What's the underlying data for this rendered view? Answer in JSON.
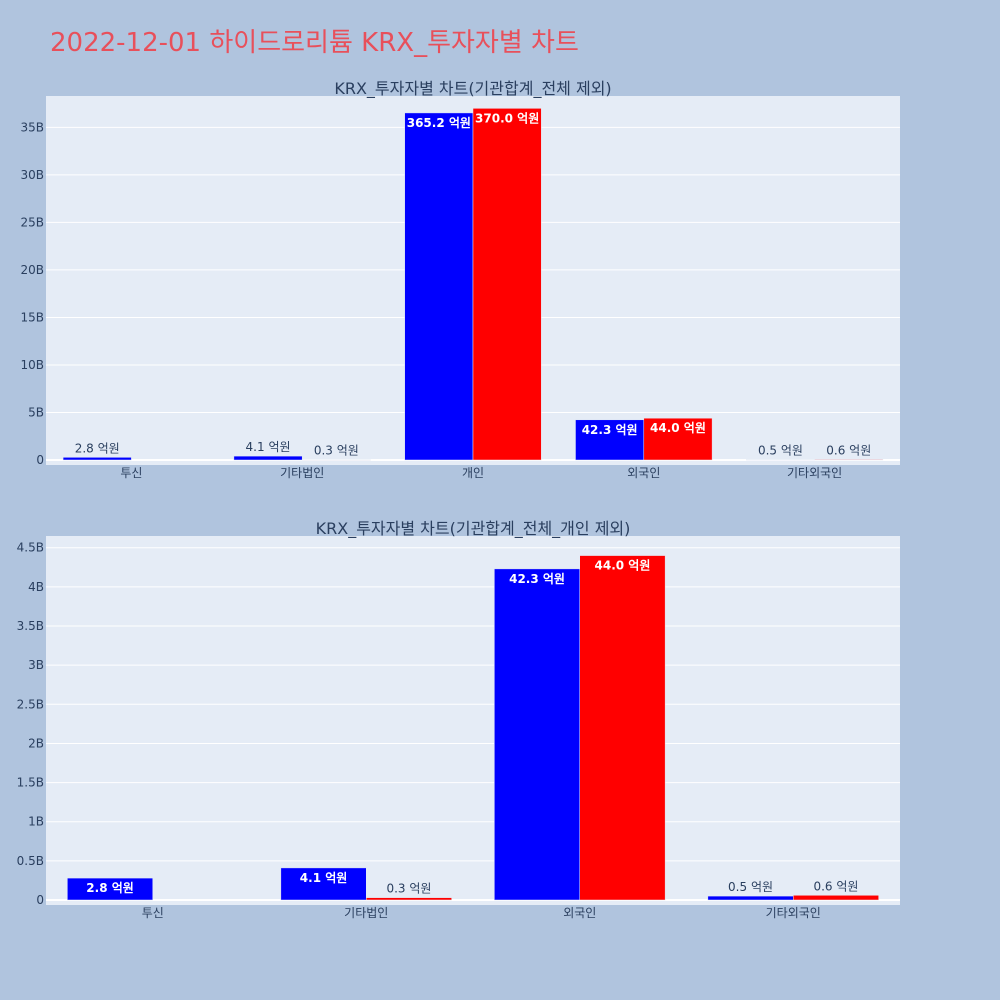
{
  "page": {
    "title": "2022-12-01 하이드로리튬 KRX_투자자별 차트"
  },
  "colors": {
    "background": "#b0c4de",
    "plot_bg": "#e5ecf6",
    "title": "#e8505b",
    "buy": "#0000ff",
    "sell": "#ff0000",
    "text": "#2a3f5f"
  },
  "chart_data": [
    {
      "type": "bar",
      "title": "KRX_투자자별 차트(기관합계_전체 제외)",
      "categories": [
        "투신",
        "기타법인",
        "개인",
        "외국인",
        "기타외국인"
      ],
      "series": [
        {
          "color": "#0000ff",
          "values": [
            280000000,
            410000000,
            36520000000,
            4230000000,
            50000000
          ],
          "labels": [
            "2.8 억원",
            "4.1 억원",
            "365.2 억원",
            "42.3 억원",
            "0.5 억원"
          ]
        },
        {
          "color": "#ff0000",
          "values": [
            0,
            30000000,
            37000000000,
            4400000000,
            60000000
          ],
          "labels": [
            "",
            "0.3 억원",
            "370.0 억원",
            "44.0 억원",
            "0.6 억원"
          ]
        }
      ],
      "ylim": [
        0,
        38300000000
      ],
      "yticks": [
        0,
        5000000000,
        10000000000,
        15000000000,
        20000000000,
        25000000000,
        30000000000,
        35000000000
      ],
      "yticklabels": [
        "0",
        "5B",
        "10B",
        "15B",
        "20B",
        "25B",
        "30B",
        "35B"
      ],
      "grid": true
    },
    {
      "type": "bar",
      "title": "KRX_투자자별 차트(기관합계_전체_개인 제외)",
      "categories": [
        "투신",
        "기타법인",
        "외국인",
        "기타외국인"
      ],
      "series": [
        {
          "color": "#0000ff",
          "values": [
            280000000,
            410000000,
            4230000000,
            50000000
          ],
          "labels": [
            "2.8 억원",
            "4.1 억원",
            "42.3 억원",
            "0.5 억원"
          ]
        },
        {
          "color": "#ff0000",
          "values": [
            0,
            30000000,
            4400000000,
            60000000
          ],
          "labels": [
            "",
            "0.3 억원",
            "44.0 억원",
            "0.6 억원"
          ]
        }
      ],
      "ylim": [
        0,
        4650000000
      ],
      "yticks": [
        0,
        500000000,
        1000000000,
        1500000000,
        2000000000,
        2500000000,
        3000000000,
        3500000000,
        4000000000,
        4500000000
      ],
      "yticklabels": [
        "0",
        "0.5B",
        "1B",
        "1.5B",
        "2B",
        "2.5B",
        "3B",
        "3.5B",
        "4B",
        "4.5B"
      ],
      "grid": true
    }
  ]
}
